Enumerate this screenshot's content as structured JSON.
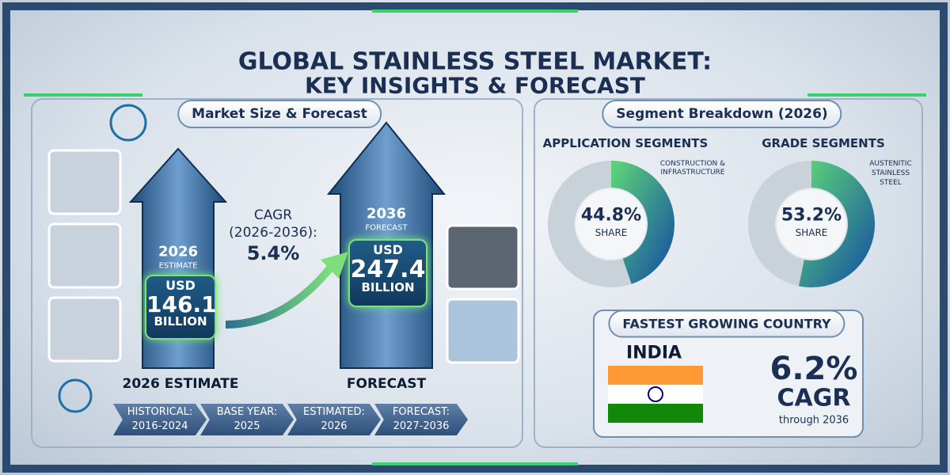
{
  "header": {
    "title": [
      "GLOBAL  STAINLESS STEEL MARKET:",
      "KEY INSIGHTS & FORECAST"
    ]
  },
  "market_size": {
    "heading": "Market Size & Forecast",
    "estimate": {
      "year": "2026",
      "tag": "ESTIMATE",
      "currency": "USD",
      "value": "146.1",
      "unit": "BILLION",
      "caption": "2026 ESTIMATE"
    },
    "cagr": {
      "label": "CAGR",
      "period": "(2026-2036):",
      "value": "5.4%"
    },
    "forecast": {
      "year": "2036",
      "tag": "FORECAST",
      "currency": "USD",
      "value": "247.4",
      "unit": "BILLION",
      "caption": "FORECAST"
    }
  },
  "timeline": [
    {
      "label": "HISTORICAL:",
      "period": "2016-2024"
    },
    {
      "label": "BASE YEAR:",
      "period": "2025"
    },
    {
      "label": "ESTIMATED:",
      "period": "2026"
    },
    {
      "label": "FORECAST:",
      "period": "2027-2036"
    }
  ],
  "segments": {
    "heading": "Segment Breakdown (2026)",
    "application": {
      "heading": "APPLICATION SEGMENTS",
      "segment": [
        "CONSTRUCTION &",
        "INFRASTRUCTURE"
      ],
      "share": {
        "value": 44.8,
        "label": "44.8%"
      },
      "share_text": "SHARE"
    },
    "grade": {
      "heading": "GRADE SEGMENTS",
      "segment": [
        "AUSTENITIC",
        "STAINLESS",
        "STEEL"
      ],
      "share": {
        "value": 53.2,
        "label": "53.2%"
      },
      "share_text": "SHARE"
    }
  },
  "fastest": {
    "heading": "FASTEST GROWING COUNTRY",
    "country": "INDIA",
    "value": "6.2%",
    "metric": "CAGR",
    "period": "through 2036"
  }
}
